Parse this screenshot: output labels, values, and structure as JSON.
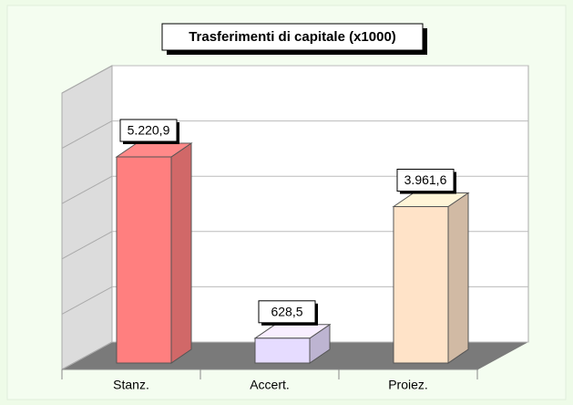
{
  "chart_data": {
    "type": "bar3d",
    "title": "Trasferimenti di capitale (x1000)",
    "categories": [
      "Stanz.",
      "Accert.",
      "Proiez."
    ],
    "values": [
      5220.9,
      628.5,
      3961.6
    ],
    "value_labels": [
      "5.220,9",
      "628,5",
      "3.961,6"
    ],
    "colors": [
      "#ff7f7f",
      "#e6dcff",
      "#ffe3c8"
    ],
    "ylim": [
      0,
      7000
    ],
    "yticks": [
      0,
      1400,
      2800,
      4200,
      5600,
      7000
    ],
    "grid": true
  }
}
